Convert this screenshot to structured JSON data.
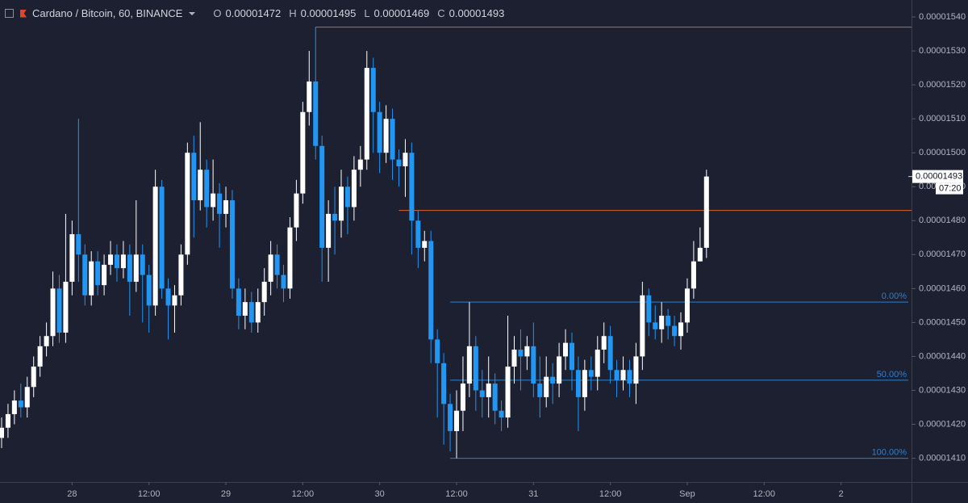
{
  "chart_data": {
    "type": "candlestick",
    "title": "Cardano / Bitcoin, 60, BINANCE",
    "ohlc_legend": [
      {
        "key": "O",
        "text": "0.00001472"
      },
      {
        "key": "H",
        "text": "0.00001495"
      },
      {
        "key": "L",
        "text": "0.00001469"
      },
      {
        "key": "C",
        "text": "0.00001493"
      }
    ],
    "up_color": "#ffffff",
    "down_color": "#2196f3",
    "open": [
      1.416e-05,
      1.419e-05,
      1.423e-05,
      1.427e-05,
      1.425e-05,
      1.431e-05,
      1.437e-05,
      1.443e-05,
      1.446e-05,
      1.46e-05,
      1.447e-05,
      1.462e-05,
      1.476e-05,
      1.47e-05,
      1.458e-05,
      1.468e-05,
      1.461e-05,
      1.467e-05,
      1.47e-05,
      1.466e-05,
      1.47e-05,
      1.462e-05,
      1.47e-05,
      1.464e-05,
      1.455e-05,
      1.49e-05,
      1.46e-05,
      1.455e-05,
      1.458e-05,
      1.47e-05,
      1.5e-05,
      1.486e-05,
      1.495e-05,
      1.484e-05,
      1.488e-05,
      1.482e-05,
      1.486e-05,
      1.46e-05,
      1.452e-05,
      1.456e-05,
      1.45e-05,
      1.456e-05,
      1.462e-05,
      1.47e-05,
      1.464e-05,
      1.46e-05,
      1.478e-05,
      1.488e-05,
      1.512e-05,
      1.521e-05,
      1.502e-05,
      1.472e-05,
      1.482e-05,
      1.48e-05,
      1.49e-05,
      1.484e-05,
      1.495e-05,
      1.498e-05,
      1.525e-05,
      1.512e-05,
      1.5e-05,
      1.51e-05,
      1.498e-05,
      1.496e-05,
      1.5e-05,
      1.48e-05,
      1.472e-05,
      1.474e-05,
      1.445e-05,
      1.438e-05,
      1.426e-05,
      1.418e-05,
      1.424e-05,
      1.432e-05,
      1.443e-05,
      1.43e-05,
      1.428e-05,
      1.432e-05,
      1.424e-05,
      1.422e-05,
      1.437e-05,
      1.442e-05,
      1.44e-05,
      1.443e-05,
      1.432e-05,
      1.428e-05,
      1.434e-05,
      1.432e-05,
      1.44e-05,
      1.444e-05,
      1.436e-05,
      1.428e-05,
      1.436e-05,
      1.434e-05,
      1.442e-05,
      1.446e-05,
      1.436e-05,
      1.433e-05,
      1.436e-05,
      1.432e-05,
      1.44e-05,
      1.458e-05,
      1.45e-05,
      1.448e-05,
      1.452e-05,
      1.449e-05,
      1.446e-05,
      1.45e-05,
      1.46e-05,
      1.468e-05,
      1.472e-05
    ],
    "high": [
      1.422e-05,
      1.426e-05,
      1.43e-05,
      1.432e-05,
      1.434e-05,
      1.44e-05,
      1.446e-05,
      1.45e-05,
      1.465e-05,
      1.464e-05,
      1.482e-05,
      1.48e-05,
      1.51e-05,
      1.473e-05,
      1.471e-05,
      1.471e-05,
      1.47e-05,
      1.474e-05,
      1.473e-05,
      1.474e-05,
      1.473e-05,
      1.486e-05,
      1.473e-05,
      1.467e-05,
      1.495e-05,
      1.492e-05,
      1.463e-05,
      1.461e-05,
      1.473e-05,
      1.503e-05,
      1.505e-05,
      1.509e-05,
      1.498e-05,
      1.498e-05,
      1.491e-05,
      1.49e-05,
      1.489e-05,
      1.463e-05,
      1.46e-05,
      1.459e-05,
      1.46e-05,
      1.466e-05,
      1.474e-05,
      1.473e-05,
      1.467e-05,
      1.481e-05,
      1.492e-05,
      1.515e-05,
      1.53e-05,
      1.537e-05,
      1.505e-05,
      1.486e-05,
      1.49e-05,
      1.495e-05,
      1.493e-05,
      1.499e-05,
      1.502e-05,
      1.53e-05,
      1.528e-05,
      1.515e-05,
      1.514e-05,
      1.513e-05,
      1.501e-05,
      1.504e-05,
      1.503e-05,
      1.483e-05,
      1.477e-05,
      1.477e-05,
      1.448e-05,
      1.441e-05,
      1.429e-05,
      1.43e-05,
      1.44e-05,
      1.456e-05,
      1.446e-05,
      1.436e-05,
      1.44e-05,
      1.435e-05,
      1.427e-05,
      1.452e-05,
      1.446e-05,
      1.448e-05,
      1.446e-05,
      1.45e-05,
      1.44e-05,
      1.44e-05,
      1.438e-05,
      1.444e-05,
      1.448e-05,
      1.447e-05,
      1.44e-05,
      1.439e-05,
      1.44e-05,
      1.446e-05,
      1.45e-05,
      1.449e-05,
      1.439e-05,
      1.44e-05,
      1.439e-05,
      1.444e-05,
      1.462e-05,
      1.46e-05,
      1.455e-05,
      1.456e-05,
      1.454e-05,
      1.452e-05,
      1.453e-05,
      1.463e-05,
      1.474e-05,
      1.478e-05,
      1.495e-05
    ],
    "low": [
      1.413e-05,
      1.416e-05,
      1.42e-05,
      1.422e-05,
      1.422e-05,
      1.428e-05,
      1.434e-05,
      1.44e-05,
      1.443e-05,
      1.444e-05,
      1.444e-05,
      1.458e-05,
      1.462e-05,
      1.455e-05,
      1.455e-05,
      1.458e-05,
      1.458e-05,
      1.464e-05,
      1.462e-05,
      1.463e-05,
      1.452e-05,
      1.459e-05,
      1.45e-05,
      1.447e-05,
      1.452e-05,
      1.457e-05,
      1.445e-05,
      1.447e-05,
      1.455e-05,
      1.467e-05,
      1.475e-05,
      1.483e-05,
      1.478e-05,
      1.48e-05,
      1.472e-05,
      1.478e-05,
      1.457e-05,
      1.448e-05,
      1.448e-05,
      1.447e-05,
      1.447e-05,
      1.452e-05,
      1.458e-05,
      1.46e-05,
      1.456e-05,
      1.457e-05,
      1.474e-05,
      1.485e-05,
      1.508e-05,
      1.498e-05,
      1.462e-05,
      1.462e-05,
      1.47e-05,
      1.475e-05,
      1.476e-05,
      1.48e-05,
      1.49e-05,
      1.495e-05,
      1.5e-05,
      1.494e-05,
      1.497e-05,
      1.492e-05,
      1.49e-05,
      1.487e-05,
      1.47e-05,
      1.466e-05,
      1.468e-05,
      1.438e-05,
      1.422e-05,
      1.414e-05,
      1.412e-05,
      1.41e-05,
      1.418e-05,
      1.428e-05,
      1.424e-05,
      1.422e-05,
      1.422e-05,
      1.42e-05,
      1.418e-05,
      1.419e-05,
      1.432e-05,
      1.43e-05,
      1.436e-05,
      1.428e-05,
      1.422e-05,
      1.425e-05,
      1.426e-05,
      1.428e-05,
      1.436e-05,
      1.43e-05,
      1.418e-05,
      1.424e-05,
      1.43e-05,
      1.43e-05,
      1.438e-05,
      1.432e-05,
      1.428e-05,
      1.43e-05,
      1.428e-05,
      1.426e-05,
      1.436e-05,
      1.446e-05,
      1.445e-05,
      1.444e-05,
      1.445e-05,
      1.443e-05,
      1.442e-05,
      1.447e-05,
      1.457e-05,
      1.468e-05,
      1.469e-05
    ],
    "close": [
      1.419e-05,
      1.423e-05,
      1.427e-05,
      1.425e-05,
      1.431e-05,
      1.437e-05,
      1.443e-05,
      1.446e-05,
      1.46e-05,
      1.447e-05,
      1.462e-05,
      1.476e-05,
      1.47e-05,
      1.458e-05,
      1.468e-05,
      1.461e-05,
      1.467e-05,
      1.47e-05,
      1.466e-05,
      1.47e-05,
      1.462e-05,
      1.47e-05,
      1.464e-05,
      1.455e-05,
      1.49e-05,
      1.46e-05,
      1.455e-05,
      1.458e-05,
      1.47e-05,
      1.5e-05,
      1.486e-05,
      1.495e-05,
      1.484e-05,
      1.488e-05,
      1.482e-05,
      1.486e-05,
      1.46e-05,
      1.452e-05,
      1.456e-05,
      1.45e-05,
      1.456e-05,
      1.462e-05,
      1.47e-05,
      1.464e-05,
      1.46e-05,
      1.478e-05,
      1.488e-05,
      1.512e-05,
      1.521e-05,
      1.502e-05,
      1.472e-05,
      1.482e-05,
      1.48e-05,
      1.49e-05,
      1.484e-05,
      1.495e-05,
      1.498e-05,
      1.525e-05,
      1.512e-05,
      1.5e-05,
      1.51e-05,
      1.498e-05,
      1.496e-05,
      1.5e-05,
      1.48e-05,
      1.472e-05,
      1.474e-05,
      1.445e-05,
      1.438e-05,
      1.426e-05,
      1.418e-05,
      1.424e-05,
      1.432e-05,
      1.443e-05,
      1.43e-05,
      1.428e-05,
      1.432e-05,
      1.424e-05,
      1.422e-05,
      1.437e-05,
      1.442e-05,
      1.44e-05,
      1.443e-05,
      1.432e-05,
      1.428e-05,
      1.434e-05,
      1.432e-05,
      1.44e-05,
      1.444e-05,
      1.436e-05,
      1.428e-05,
      1.436e-05,
      1.434e-05,
      1.442e-05,
      1.446e-05,
      1.436e-05,
      1.433e-05,
      1.436e-05,
      1.432e-05,
      1.44e-05,
      1.458e-05,
      1.45e-05,
      1.448e-05,
      1.452e-05,
      1.449e-05,
      1.446e-05,
      1.45e-05,
      1.46e-05,
      1.468e-05,
      1.472e-05,
      1.493e-05
    ],
    "xlim": [
      -0.25,
      142
    ],
    "xticks": [
      {
        "value": 11,
        "label": "28"
      },
      {
        "value": 23,
        "label": "12:00"
      },
      {
        "value": 35,
        "label": "29"
      },
      {
        "value": 47,
        "label": "12:00"
      },
      {
        "value": 59,
        "label": "30"
      },
      {
        "value": 71,
        "label": "12:00"
      },
      {
        "value": 83,
        "label": "31"
      },
      {
        "value": 95,
        "label": "12:00"
      },
      {
        "value": 107,
        "label": "Sep"
      },
      {
        "value": 119,
        "label": "12:00"
      },
      {
        "value": 131,
        "label": "2"
      }
    ],
    "ylim": [
      1.403e-05,
      1.545e-05
    ],
    "yticks": [
      {
        "value": 1.41e-05,
        "label": "0.00001410"
      },
      {
        "value": 1.42e-05,
        "label": "0.00001420"
      },
      {
        "value": 1.43e-05,
        "label": "0.00001430"
      },
      {
        "value": 1.44e-05,
        "label": "0.00001440"
      },
      {
        "value": 1.45e-05,
        "label": "0.00001450"
      },
      {
        "value": 1.46e-05,
        "label": "0.00001460"
      },
      {
        "value": 1.47e-05,
        "label": "0.00001470"
      },
      {
        "value": 1.48e-05,
        "label": "0.00001480"
      },
      {
        "value": 1.49e-05,
        "label": "0.00001490"
      },
      {
        "value": 1.5e-05,
        "label": "0.00001500"
      },
      {
        "value": 1.51e-05,
        "label": "0.00001510"
      },
      {
        "value": 1.52e-05,
        "label": "0.00001520"
      },
      {
        "value": 1.53e-05,
        "label": "0.00001530"
      },
      {
        "value": 1.54e-05,
        "label": "0.00001540"
      }
    ],
    "hlines": [
      {
        "value": 1.537e-05,
        "from": 49,
        "color": "#e0622a"
      },
      {
        "value": 1.483e-05,
        "from": 62,
        "color": "#e0622a"
      }
    ],
    "fib_color": "#2a7fd4",
    "fib_from": 70,
    "fib_levels": [
      {
        "label": "0.00%",
        "value": 1.456e-05
      },
      {
        "label": "50.00%",
        "value": 1.433e-05
      },
      {
        "label": "100.00%",
        "value": 1.41e-05
      }
    ],
    "price_tag": {
      "label": "0.00001493",
      "value": 1.493e-05,
      "countdown": "07:20"
    }
  }
}
